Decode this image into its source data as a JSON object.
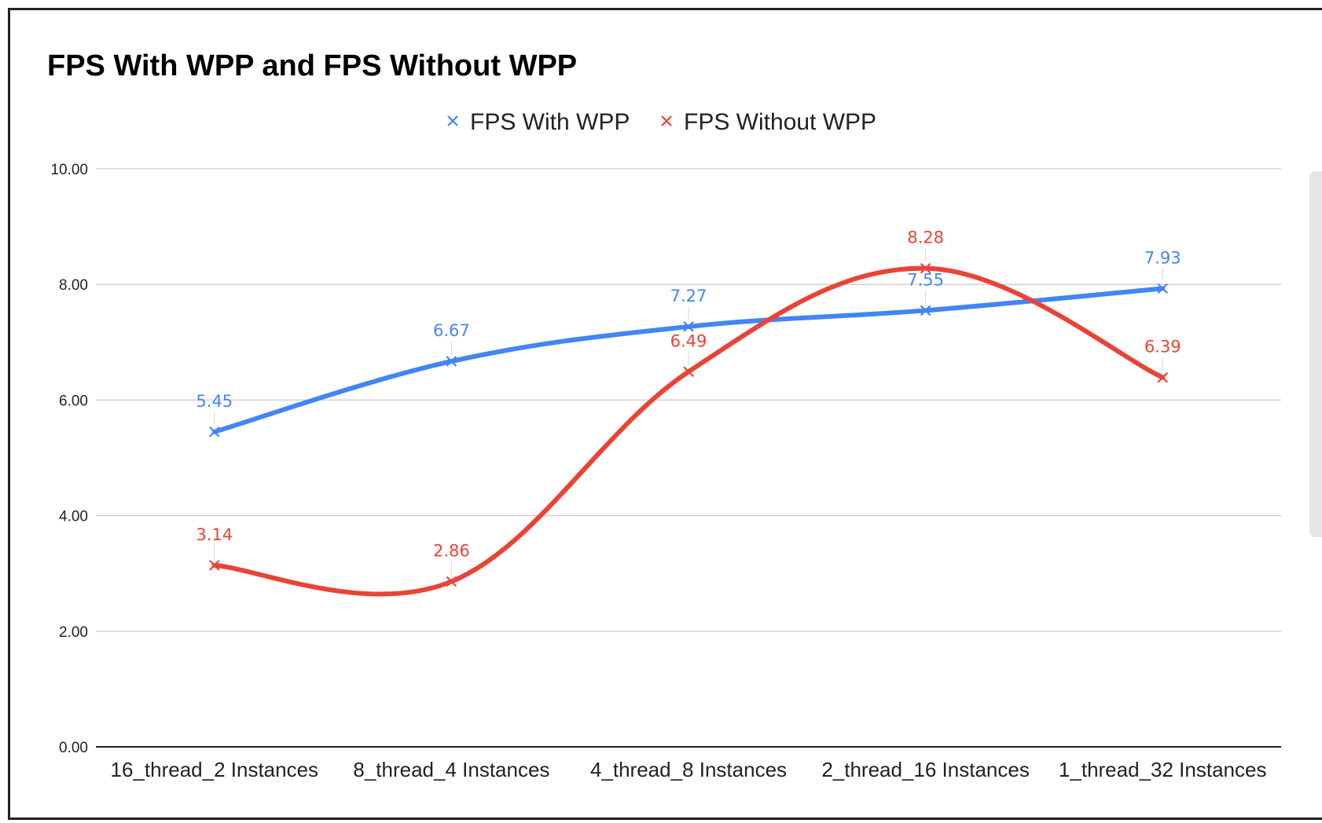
{
  "chart_data": {
    "type": "line",
    "title": "FPS With WPP and FPS Without WPP",
    "xlabel": "",
    "ylabel": "",
    "categories": [
      "16_thread_2 Instances",
      "8_thread_4 Instances",
      "4_thread_8 Instances",
      "2_thread_16 Instances",
      "1_thread_32 Instances"
    ],
    "series": [
      {
        "name": "FPS With WPP",
        "color": "#4285f4",
        "values": [
          5.45,
          6.67,
          7.27,
          7.55,
          7.93
        ],
        "labels": [
          "5.45",
          "6.67",
          "7.27",
          "7.55",
          "7.93"
        ]
      },
      {
        "name": "FPS Without WPP",
        "color": "#ea4335",
        "values": [
          3.14,
          2.86,
          6.49,
          8.28,
          6.39
        ],
        "labels": [
          "3.14",
          "2.86",
          "6.49",
          "8.28",
          "6.39"
        ]
      }
    ],
    "ylim": [
      0,
      10
    ],
    "yticks": [
      0,
      2,
      4,
      6,
      8,
      10
    ],
    "ytick_labels": [
      "0.00",
      "2.00",
      "4.00",
      "6.00",
      "8.00",
      "10.00"
    ],
    "grid": true,
    "legend_position": "top-center",
    "marker": "x",
    "smooth": true
  }
}
